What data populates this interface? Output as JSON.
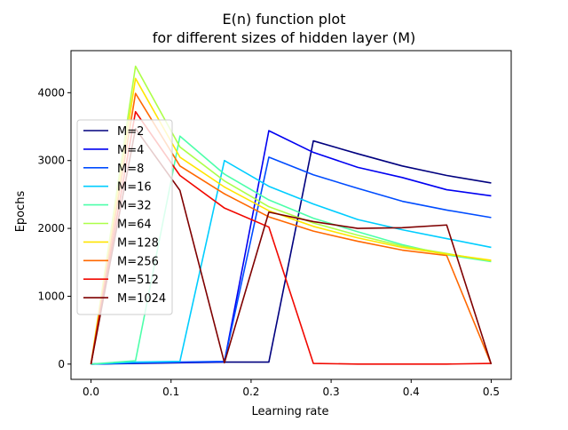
{
  "chart_data": {
    "type": "line",
    "title": "E(n) function plot",
    "subtitle": "for different sizes of hidden layer (M)",
    "xlabel": "Learning rate",
    "ylabel": "Epochs",
    "xlim": [
      -0.025,
      0.525
    ],
    "ylim": [
      -225,
      4620
    ],
    "xticks": [
      0.0,
      0.1,
      0.2,
      0.3,
      0.4,
      0.5
    ],
    "xtick_labels": [
      "0.0",
      "0.1",
      "0.2",
      "0.3",
      "0.4",
      "0.5"
    ],
    "yticks": [
      0,
      1000,
      2000,
      3000,
      4000
    ],
    "ytick_labels": [
      "0",
      "1000",
      "2000",
      "3000",
      "4000"
    ],
    "grid": false,
    "legend_position": "center-left",
    "x": [
      0.0,
      0.0556,
      0.1111,
      0.1667,
      0.2222,
      0.2778,
      0.3333,
      0.3889,
      0.4444,
      0.5
    ],
    "series": [
      {
        "name": "M=2",
        "color": "#00007f",
        "values": [
          0,
          10,
          20,
          30,
          30,
          3290,
          3100,
          2920,
          2780,
          2670
        ]
      },
      {
        "name": "M=4",
        "color": "#0000f1",
        "values": [
          0,
          15,
          25,
          35,
          3440,
          3120,
          2900,
          2750,
          2570,
          2480
        ]
      },
      {
        "name": "M=8",
        "color": "#004cff",
        "values": [
          0,
          20,
          30,
          40,
          3050,
          2790,
          2590,
          2400,
          2270,
          2160
        ]
      },
      {
        "name": "M=16",
        "color": "#00cdff",
        "values": [
          0,
          30,
          40,
          3000,
          2620,
          2360,
          2130,
          1980,
          1850,
          1720
        ]
      },
      {
        "name": "M=32",
        "color": "#4dffaa",
        "values": [
          0,
          50,
          3360,
          2800,
          2420,
          2150,
          1950,
          1760,
          1610,
          1510
        ]
      },
      {
        "name": "M=64",
        "color": "#adff49",
        "values": [
          0,
          4390,
          3200,
          2700,
          2320,
          2080,
          1900,
          1740,
          1630,
          1520
        ]
      },
      {
        "name": "M=128",
        "color": "#ffe500",
        "values": [
          0,
          4210,
          3050,
          2610,
          2260,
          2030,
          1860,
          1720,
          1620,
          1530
        ]
      },
      {
        "name": "M=256",
        "color": "#ff6800",
        "values": [
          0,
          3990,
          2920,
          2510,
          2170,
          1960,
          1810,
          1680,
          1600,
          0
        ]
      },
      {
        "name": "M=512",
        "color": "#f10800",
        "values": [
          0,
          3720,
          2780,
          2300,
          2020,
          10,
          0,
          0,
          0,
          10
        ]
      },
      {
        "name": "M=1024",
        "color": "#7f0000",
        "values": [
          0,
          3470,
          2560,
          20,
          2240,
          2100,
          2000,
          2010,
          2050,
          0
        ]
      }
    ]
  }
}
